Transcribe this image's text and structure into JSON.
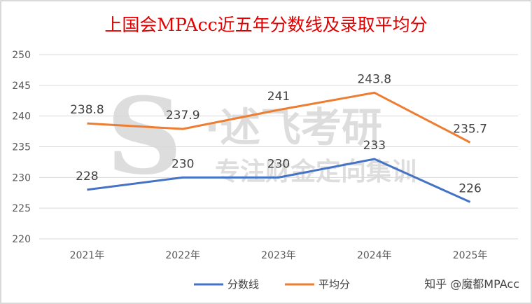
{
  "chart_data": {
    "type": "line",
    "title": "上国会MPAcc近五年分数线及录取平均分",
    "categories": [
      "2021年",
      "2022年",
      "2023年",
      "2024年",
      "2025年"
    ],
    "ylim": [
      220,
      250
    ],
    "yticks": [
      220,
      225,
      230,
      235,
      240,
      245,
      250
    ],
    "grid": true,
    "legend_position": "bottom",
    "series": [
      {
        "name": "分数线",
        "values": [
          228,
          230,
          230,
          233,
          226
        ],
        "color": "#4472C4"
      },
      {
        "name": "平均分",
        "values": [
          238.8,
          237.9,
          241,
          243.8,
          235.7
        ],
        "color": "#ED7D31"
      }
    ]
  },
  "watermark": {
    "brand": "S·述飞考研",
    "slogan": "专注财金定向集训",
    "source": "知乎 @魔都MPAcc"
  }
}
